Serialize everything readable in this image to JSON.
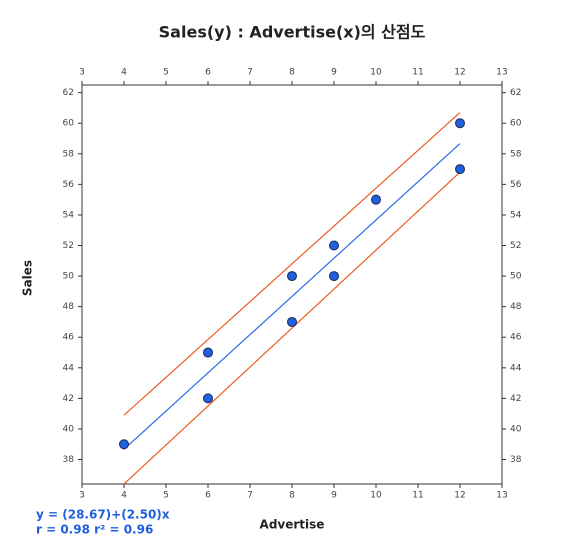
{
  "chart_data": {
    "type": "scatter",
    "title": "Sales(y) : Advertise(x)의 산점도",
    "x_label": "Advertise",
    "y_label": "Sales",
    "annotations": [
      "y = (28.67)+(2.50)x",
      "r = 0.98 r² = 0.96"
    ],
    "x": [
      4,
      6,
      6,
      8,
      8,
      9,
      9,
      10,
      12,
      12
    ],
    "values": [
      39,
      45,
      42,
      50,
      47,
      52,
      50,
      55,
      60,
      57
    ],
    "color": "#1f5fe0",
    "lines": [
      {
        "x": [
          4,
          12
        ],
        "values": [
          38.67,
          58.67
        ],
        "color": "#2a6af0"
      },
      {
        "x": [
          4,
          12
        ],
        "values": [
          40.9,
          60.7
        ],
        "color": "#f05a1e"
      },
      {
        "x": [
          4,
          12
        ],
        "values": [
          36.4,
          56.8
        ],
        "color": "#f05a1e"
      }
    ],
    "xlim": [
      3,
      13
    ],
    "ylim": [
      36.4,
      62.5
    ],
    "xticks": [
      3,
      4,
      5,
      6,
      7,
      8,
      9,
      10,
      11,
      12,
      13
    ],
    "yticks": [
      38,
      40,
      42,
      44,
      46,
      48,
      50,
      52,
      54,
      56,
      58,
      60,
      62
    ]
  }
}
